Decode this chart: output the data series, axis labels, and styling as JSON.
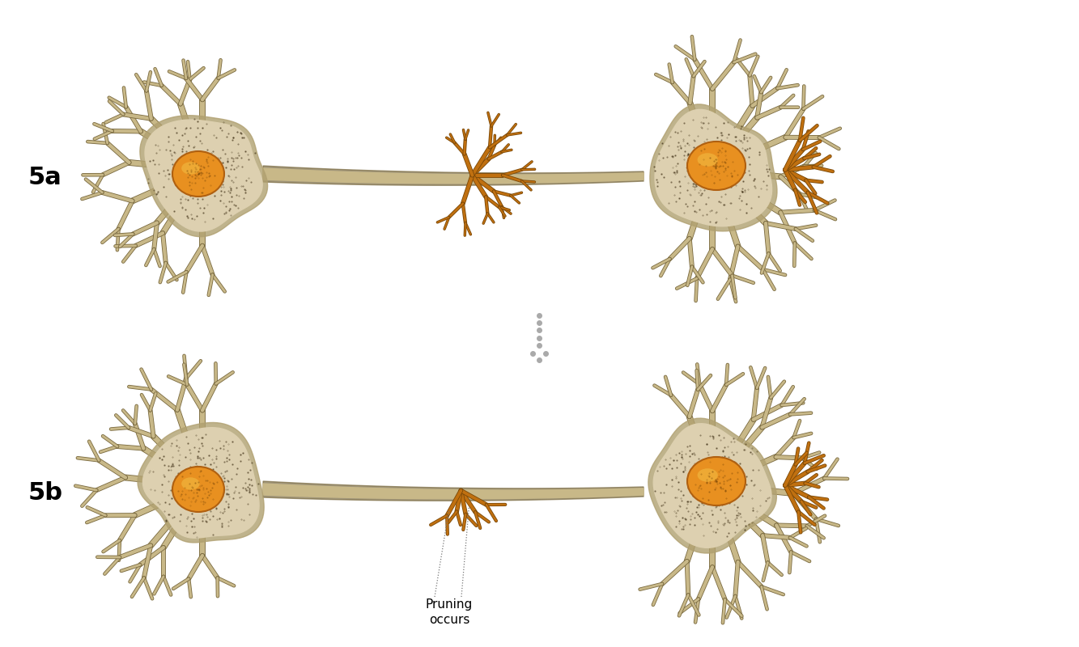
{
  "background_color": "#ffffff",
  "label_5a": "5a",
  "label_5b": "5b",
  "label_fontsize": 22,
  "label_fontweight": "bold",
  "pruning_text": "Pruning\noccurs",
  "pruning_fontsize": 11,
  "cell_body_color": "#ddd0b0",
  "cell_body_edge_color": "#6a6040",
  "cell_body_dark_color": "#b0a070",
  "nucleus_color": "#e89020",
  "nucleus_highlight_color": "#f0b840",
  "nucleus_edge_color": "#b06010",
  "dendrite_color": "#c8b888",
  "dendrite_edge_color": "#7a6a40",
  "synapse_color": "#c07010",
  "synapse_edge_color": "#7a4808",
  "axon_color": "#c8b888",
  "axon_edge_color": "#7a6a40",
  "dot_color": "#aaaaaa",
  "dotted_line_color": "#777777",
  "stipple_color": "#3a2a10",
  "nucleus_stipple_color": "#7a4808"
}
